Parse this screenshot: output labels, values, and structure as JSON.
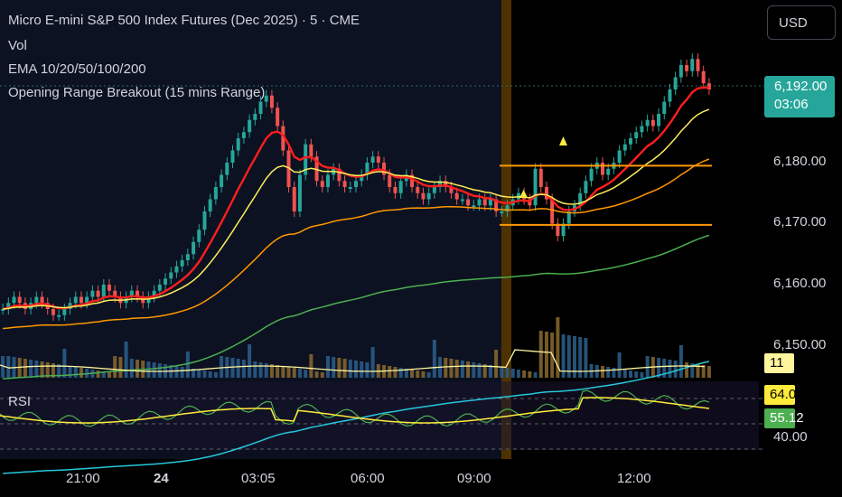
{
  "legend": {
    "title": "Micro E-mini S&P 500 Index Futures (Dec 2025) · 5 · CME",
    "vol": "Vol",
    "ema": "EMA 10/20/50/100/200",
    "orb": "Opening Range Breakout (15 mins Range)",
    "rsi": "RSI"
  },
  "currency_button": "USD",
  "price_axis": {
    "labels": [
      "6,180.00",
      "6,170.00",
      "6,160.00",
      "6,150.00"
    ],
    "current_price": "6,192.00",
    "countdown": "03:06"
  },
  "volume_tag": "11",
  "rsi_axis": {
    "rsi_value": "64.03",
    "rsi_ma": "55.12",
    "level_label": "40.00"
  },
  "time_axis": [
    "21:00",
    "24",
    "03:05",
    "06:00",
    "09:00",
    "12:00"
  ],
  "colors": {
    "up": "#26a69a",
    "down": "#ef5350",
    "ema10": "#ff1e1e",
    "ema20": "#ffee58",
    "ema50": "#ff9800",
    "ema100": "#4caf50",
    "ema200": "#26c6da",
    "orb_level": "#ff9800",
    "session_marker": "#4d3200"
  },
  "chart_data": {
    "type": "candlestick",
    "price_range": [
      6145,
      6200
    ],
    "orb_high": 6179.5,
    "orb_low": 6169.8,
    "close": [
      6156,
      6157,
      6158,
      6157,
      6156,
      6157,
      6158,
      6157,
      6156,
      6155,
      6155,
      6156,
      6157,
      6158,
      6157,
      6158,
      6159,
      6158,
      6160,
      6159,
      6158,
      6157,
      6158,
      6159,
      6158,
      6157,
      6158,
      6159,
      6160,
      6161,
      6162,
      6163,
      6164,
      6165,
      6167,
      6169,
      6172,
      6174,
      6176,
      6178,
      6180,
      6182,
      6184,
      6185,
      6187,
      6188,
      6190,
      6191,
      6189,
      6186,
      6182,
      6176,
      6172,
      6178,
      6183,
      6181,
      6177,
      6176,
      6178,
      6179,
      6177,
      6176,
      6176,
      6177,
      6178,
      6180,
      6181,
      6180,
      6178,
      6176,
      6175,
      6177,
      6178,
      6176,
      6175,
      6174,
      6175,
      6176,
      6177,
      6176,
      6175,
      6174,
      6174,
      6173,
      6173,
      6174,
      6173,
      6174,
      6172,
      6172,
      6173,
      6174,
      6175,
      6174,
      6173,
      6179,
      6176,
      6174,
      6170,
      6168,
      6170,
      6172,
      6173,
      6175,
      6177,
      6179,
      6180,
      6178,
      6179,
      6180,
      6182,
      6183,
      6184,
      6185,
      6186,
      6187,
      6186,
      6188,
      6190,
      6192,
      6194,
      6196,
      6195,
      6197,
      6195,
      6193,
      6192
    ]
  }
}
